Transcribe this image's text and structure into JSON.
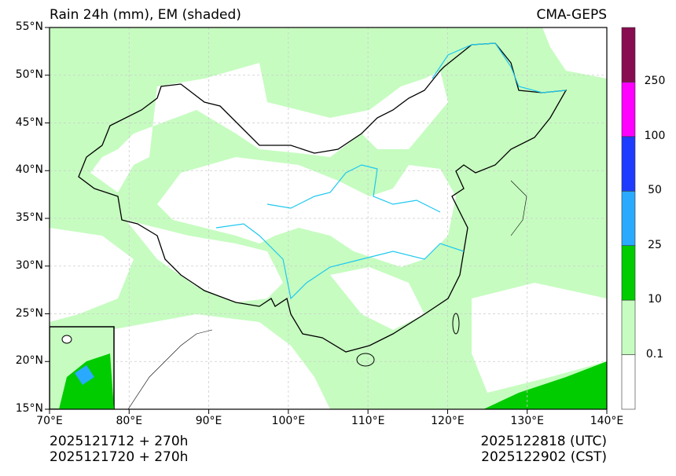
{
  "title_left": "Rain 24h (mm), EM (shaded)",
  "title_right": "CMA-GEPS",
  "footer_left": [
    "2025121712 + 270h",
    "2025121720 + 270h"
  ],
  "footer_right": [
    "2025122818 (UTC)",
    "2025122902 (CST)"
  ],
  "lat_ticks": [
    "15°N",
    "20°N",
    "25°N",
    "30°N",
    "35°N",
    "40°N",
    "45°N",
    "50°N",
    "55°N"
  ],
  "lon_ticks": [
    "70°E",
    "80°E",
    "90°E",
    "100°E",
    "110°E",
    "120°E",
    "130°E",
    "140°E"
  ],
  "extent": {
    "lon": [
      70,
      140
    ],
    "lat": [
      15,
      55
    ]
  },
  "colorbar": {
    "levels": [
      "0.1",
      "10",
      "25",
      "50",
      "100",
      "250"
    ],
    "colors": [
      "#ffffff",
      "#c6fcc0",
      "#00cc00",
      "#2aaaff",
      "#1e3cff",
      "#ff00ff",
      "#880c50"
    ]
  }
}
